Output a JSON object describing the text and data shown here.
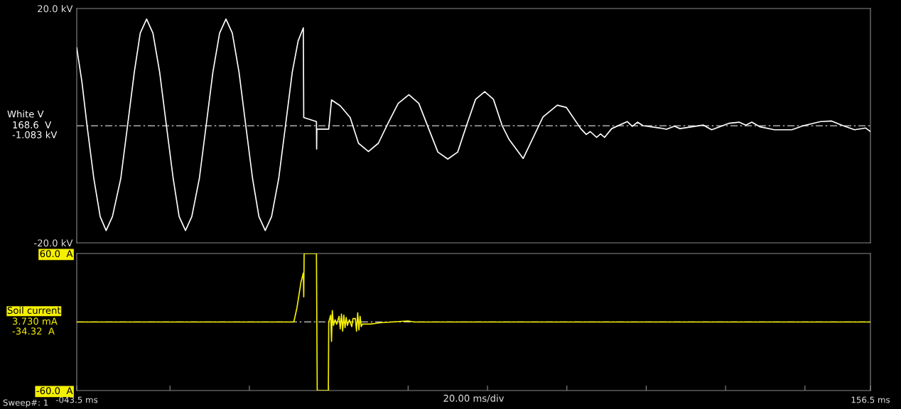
{
  "chart_data": [
    {
      "type": "line",
      "tick_labels": "y",
      "xlim": [
        -43.5,
        156.5
      ],
      "ylim": [
        -20,
        20
      ],
      "yticks": [
        {
          "value": 20,
          "label": "20.0 kV"
        },
        {
          "value": -20,
          "label": "-20.0 kV"
        }
      ],
      "ref_lines": [
        {
          "axis": "y",
          "value": 0,
          "color": "#d0d0d0",
          "line_style": "dashed"
        }
      ],
      "annotations": [
        "168.6  V",
        "-1.083 kV"
      ],
      "series": [
        {
          "name": "White V",
          "color": "#ffffff",
          "x": [
            -43.5,
            -42.2,
            -40.9,
            -39.2,
            -37.6,
            -36.1,
            -34.5,
            -32.4,
            -30.7,
            -29.0,
            -27.5,
            -25.9,
            -24.3,
            -22.6,
            -20.9,
            -19.2,
            -17.7,
            -16.1,
            -14.5,
            -12.6,
            -10.9,
            -9.2,
            -7.5,
            -5.9,
            -4.3,
            -2.6,
            -0.9,
            0.8,
            2.4,
            4.0,
            5.6,
            7.4,
            9.1,
            10.8,
            12.3,
            13.6,
            13.7,
            16.9,
            16.95,
            17.0,
            20.0,
            20.7,
            22.9,
            25.4,
            27.5,
            30.0,
            32.5,
            35.0,
            37.5,
            40.2,
            42.7,
            45.0,
            47.5,
            50.0,
            52.5,
            54.7,
            57.0,
            59.3,
            61.5,
            63.7,
            65.4,
            69.0,
            74.0,
            77.6,
            79.9,
            83.5,
            84.9,
            85.9,
            87.5,
            88.5,
            89.5,
            91.3,
            95.2,
            96.5,
            97.8,
            99.2,
            103.5,
            105.1,
            107.1,
            108.5,
            114.4,
            116.5,
            120.8,
            123.4,
            125.1,
            126.6,
            128.7,
            132.3,
            136.7,
            139.6,
            143.9,
            146.7,
            149.6,
            152.5,
            155.3,
            156.5
          ],
          "values": [
            13.3,
            7.5,
            0,
            -9.0,
            -15.5,
            -17.9,
            -15.5,
            -9.0,
            0,
            9.1,
            15.8,
            18.2,
            15.8,
            9.1,
            0,
            -9.0,
            -15.5,
            -17.9,
            -15.5,
            -9.0,
            0,
            9.1,
            15.8,
            18.2,
            15.8,
            9.1,
            0,
            -9.0,
            -15.5,
            -17.9,
            -15.5,
            -9.0,
            0,
            9.1,
            14.5,
            16.7,
            1.4,
            0.7,
            -4.0,
            -0.6,
            -0.6,
            4.4,
            3.4,
            1.4,
            -3.0,
            -4.4,
            -3.0,
            0.5,
            3.8,
            5.3,
            3.8,
            -0.2,
            -4.5,
            -5.7,
            -4.5,
            0,
            4.5,
            5.8,
            4.5,
            0,
            -2.3,
            -5.6,
            1.5,
            3.5,
            3.1,
            -0.5,
            -1.5,
            -1.0,
            -2.0,
            -1.4,
            -2.0,
            -0.5,
            0.7,
            -0.1,
            0.6,
            0,
            -0.4,
            -0.6,
            -0.1,
            -0.5,
            0.1,
            -0.7,
            0.4,
            0.6,
            0.1,
            0.6,
            -0.2,
            -0.7,
            -0.7,
            0,
            0.7,
            0.8,
            0,
            -0.7,
            -0.4,
            -1.0
          ]
        }
      ]
    },
    {
      "type": "line",
      "xlabel": "20.00 ms/div",
      "xlim": [
        -43.5,
        156.5
      ],
      "ylim": [
        -60,
        60
      ],
      "xticks": [
        {
          "value": -43.5,
          "label": "-043.5 ms"
        },
        {
          "value": -20,
          "label": null
        },
        {
          "value": 0,
          "label": null
        },
        {
          "value": 20,
          "label": null
        },
        {
          "value": 40,
          "label": null
        },
        {
          "value": 60,
          "label": null
        },
        {
          "value": 80,
          "label": null
        },
        {
          "value": 100,
          "label": null
        },
        {
          "value": 120,
          "label": null
        },
        {
          "value": 140,
          "label": null
        },
        {
          "value": 156.5,
          "label": "156.5 ms"
        }
      ],
      "yticks": [
        {
          "value": 60,
          "label": "60.0  A"
        },
        {
          "value": -60,
          "label": "-60.0  A"
        }
      ],
      "ref_lines": [
        {
          "axis": "y",
          "value": 0,
          "color": "#d0d0d0",
          "line_style": "dashed"
        }
      ],
      "annotations": [
        "3.730 mA",
        "-34.32  A",
        "Sweep#: 1"
      ],
      "series": [
        {
          "name": "Soil current",
          "color": "#f5f000",
          "x": [
            -43.5,
            11.2,
            12.0,
            13.0,
            13.6,
            13.7,
            13.8,
            16.9,
            17.1,
            19.9,
            20.0,
            20.5,
            20.7,
            20.9,
            21.2,
            21.6,
            22.0,
            22.6,
            22.9,
            23.2,
            23.5,
            23.8,
            24.1,
            24.4,
            24.7,
            25.2,
            25.8,
            26.1,
            26.7,
            27.0,
            27.3,
            27.6,
            27.9,
            28.2,
            28.5,
            30.5,
            33.0,
            36.0,
            38.5,
            40.0,
            41.5,
            156.5
          ],
          "values": [
            0,
            0,
            12.6,
            34.8,
            43,
            22,
            60,
            60,
            -60,
            -60,
            0,
            6,
            -17,
            10,
            -3,
            2,
            -2,
            5,
            -6,
            7,
            -8,
            6,
            -5,
            4,
            -3,
            2,
            -4,
            3,
            3,
            -8,
            8,
            -7,
            5,
            -4,
            -1.8,
            -1.8,
            -0.6,
            0,
            0.6,
            0.9,
            0,
            0
          ]
        }
      ]
    }
  ]
}
